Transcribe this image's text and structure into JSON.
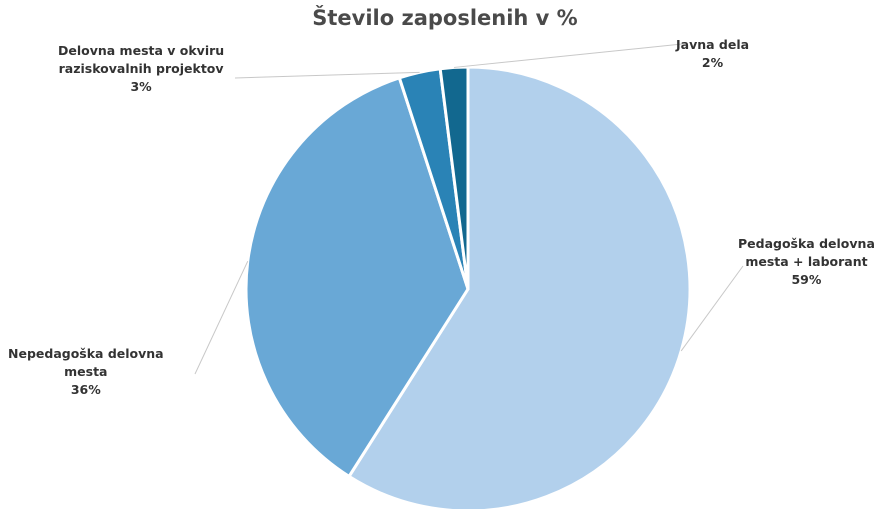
{
  "chart_data": {
    "type": "pie",
    "title": "Število zaposlenih v %",
    "slices": [
      {
        "label_lines": [
          "Pedagoška delovna",
          "mesta + laborant"
        ],
        "percent_label": "59%",
        "value": 59,
        "color": "#b2d0ec"
      },
      {
        "label_lines": [
          "Nepedagoška delovna",
          "mesta"
        ],
        "percent_label": "36%",
        "value": 36,
        "color": "#69a8d6"
      },
      {
        "label_lines": [
          "Delovna mesta v okviru",
          "raziskovalnih projektov"
        ],
        "percent_label": "3%",
        "value": 3,
        "color": "#2a83b6"
      },
      {
        "label_lines": [
          "Javna dela"
        ],
        "percent_label": "2%",
        "value": 2,
        "color": "#12688f"
      }
    ],
    "legend": "none"
  }
}
